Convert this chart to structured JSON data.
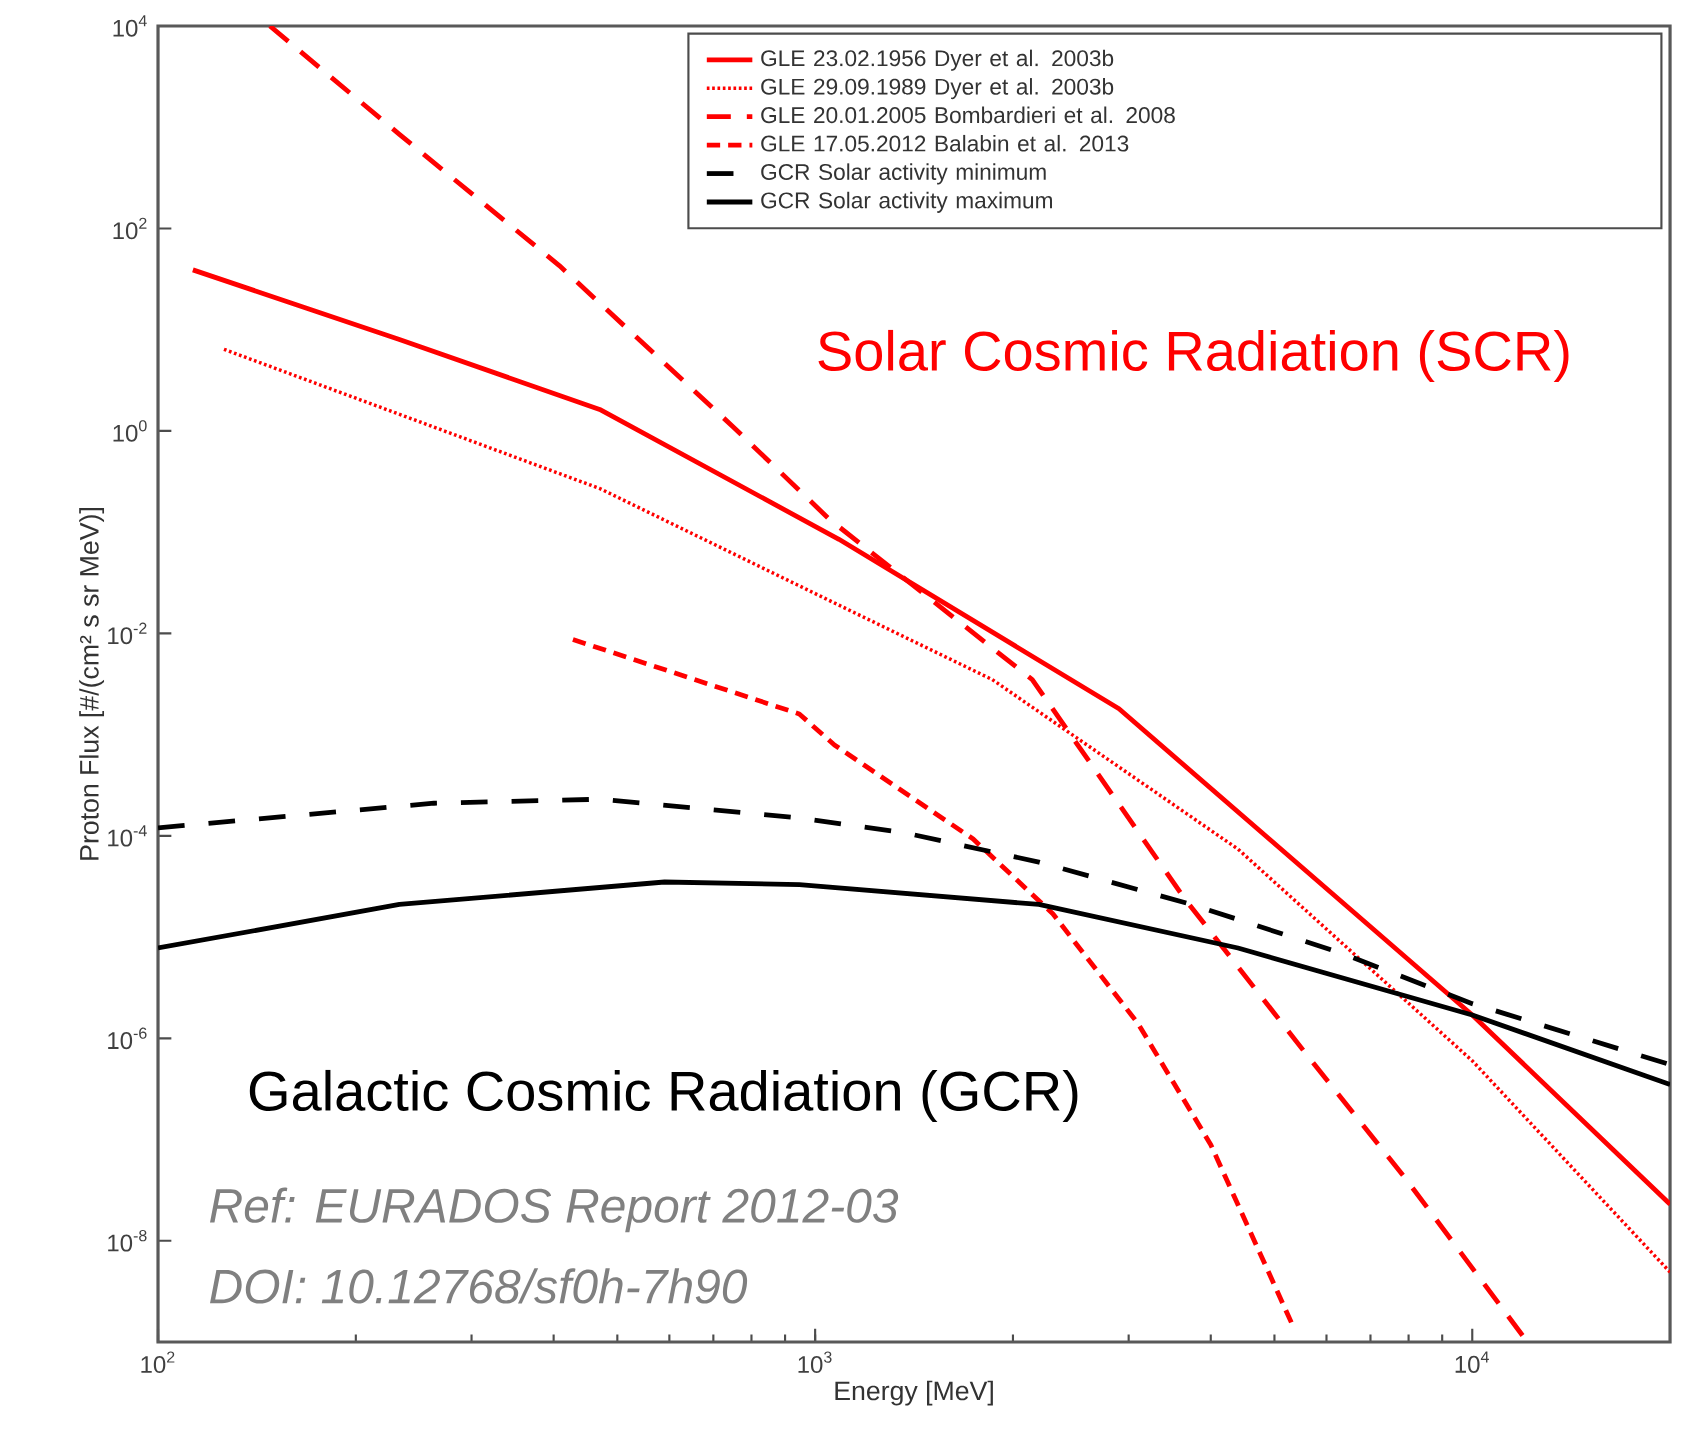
{
  "chart_data": {
    "type": "line",
    "xlabel": "Energy  [MeV]",
    "ylabel": "Proton Flux  [#/(cm² s sr MeV)]",
    "log": "xy",
    "legend": "top right",
    "grid": false,
    "xlim": [
      100,
      20000
    ],
    "ylim": [
      1e-09,
      10000
    ],
    "xticks": [
      {
        "value": 100,
        "label": "10$^{2}$"
      },
      {
        "value": 1000,
        "label": "10$^{3}$"
      },
      {
        "value": 10000,
        "label": "10$^{4}$"
      }
    ],
    "yticks": [
      {
        "value": 1e-08,
        "label": "10$^{-8}$"
      },
      {
        "value": 1e-06,
        "label": "10$^{-6}$"
      },
      {
        "value": 0.0001,
        "label": "10$^{-4}$"
      },
      {
        "value": 0.01,
        "label": "10$^{-2}$"
      },
      {
        "value": 1,
        "label": "10$^{0}$"
      },
      {
        "value": 100,
        "label": "10$^{2}$"
      },
      {
        "value": 10000,
        "label": "10$^{4}$"
      }
    ],
    "series": [
      {
        "name": "GLE 23.02.1956 Dyer et al. 2003b",
        "color": "#ff0000",
        "line_style": "solid",
        "x": [
          113,
          233,
          470,
          1087,
          2900,
          10000,
          20000
        ],
        "values": [
          39,
          8.0,
          1.63,
          0.085,
          0.0018,
          1.7e-06,
          2.3e-08
        ]
      },
      {
        "name": "GLE 29.09.1989 Dyer et al. 2003b",
        "color": "#ff0000",
        "line_style": "dotted",
        "x": [
          126,
          470,
          1087,
          1860,
          4400,
          10000,
          20000
        ],
        "values": [
          6.4,
          0.27,
          0.019,
          0.0035,
          7.4e-05,
          6e-07,
          4.9e-09
        ]
      },
      {
        "name": "GLE 20.01.2005 Bombardieri et al. 2008",
        "color": "#ff0000",
        "line_style": "dashed",
        "x": [
          148,
          233,
          408,
          750,
          1050,
          2140,
          3650,
          5560,
          7900,
          12000
        ],
        "values": [
          10000,
          850,
          43,
          1.1,
          0.135,
          0.0035,
          2.4e-05,
          7.3e-07,
          4.2e-08,
          1.1e-09
        ]
      },
      {
        "name": "GLE 17.05.2012 Balabin et al. 2013",
        "color": "#ff0000",
        "line_style": "dashed",
        "x": [
          428,
          946,
          1070,
          1740,
          2300,
          3100,
          4000,
          5320
        ],
        "values": [
          0.0087,
          0.0016,
          0.00079,
          9.3e-05,
          1.7e-05,
          1.4e-06,
          8.9e-08,
          1.5e-09
        ]
      },
      {
        "name": "GCR Solar activity minimum",
        "color": "#000000",
        "line_style": "dashed",
        "x": [
          100,
          263,
          470,
          946,
          1370,
          2190,
          3740,
          6300,
          10000,
          20000
        ],
        "values": [
          0.00012,
          0.00021,
          0.00023,
          0.00015,
          0.000107,
          5.5e-05,
          2.1e-05,
          7e-06,
          2.2e-06,
          5.5e-07
        ]
      },
      {
        "name": "GCR Solar activity maximum",
        "color": "#000000",
        "line_style": "solid",
        "x": [
          100,
          233,
          590,
          946,
          2190,
          4400,
          10000,
          20000
        ],
        "values": [
          7.8e-06,
          2.1e-05,
          3.5e-05,
          3.3e-05,
          2.1e-05,
          7.8e-06,
          1.7e-06,
          3.5e-07
        ]
      }
    ],
    "annotations": [
      "Solar Cosmic Radiation (SCR)",
      "Galactic Cosmic Radiation (GCR)",
      "Ref: EURADOS Report 2012-03",
      "DOI: 10.12768/sf0h-7h90"
    ]
  }
}
